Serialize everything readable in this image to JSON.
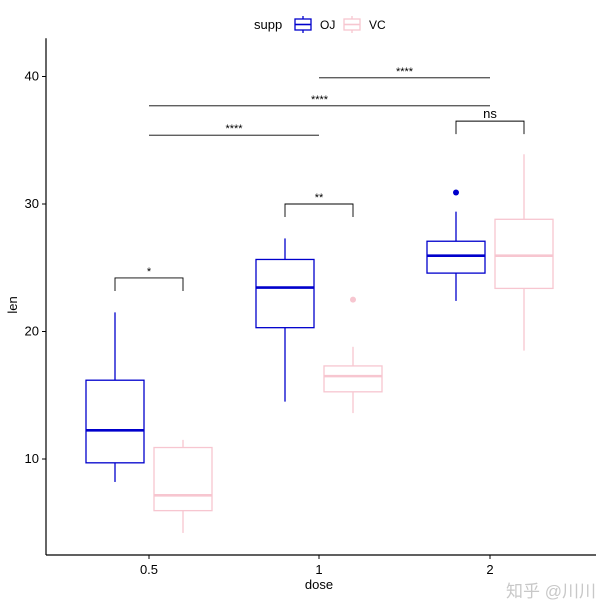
{
  "chart_data": {
    "type": "boxplot",
    "xlabel": "dose",
    "ylabel": "len",
    "categories": [
      "0.5",
      "1",
      "2"
    ],
    "yticks": [
      10,
      20,
      30,
      40
    ],
    "ylim": [
      2.6,
      43
    ],
    "grid": false,
    "legend": {
      "title": "supp",
      "position": "top",
      "entries": [
        "OJ",
        "VC"
      ]
    },
    "series": [
      {
        "name": "OJ",
        "color": "#0000CC",
        "boxes": [
          {
            "min": 8.2,
            "q1": 9.7,
            "median": 12.25,
            "q3": 16.18,
            "max": 21.5,
            "outliers": []
          },
          {
            "min": 14.5,
            "q1": 20.3,
            "median": 23.45,
            "q3": 25.65,
            "max": 27.3,
            "outliers": []
          },
          {
            "min": 22.4,
            "q1": 24.58,
            "median": 25.95,
            "q3": 27.08,
            "max": 29.4,
            "outliers": [
              30.9
            ]
          }
        ]
      },
      {
        "name": "VC",
        "color": "#F7C6D0",
        "boxes": [
          {
            "min": 4.2,
            "q1": 5.95,
            "median": 7.15,
            "q3": 10.9,
            "max": 11.5,
            "outliers": []
          },
          {
            "min": 13.6,
            "q1": 15.27,
            "median": 16.5,
            "q3": 17.3,
            "max": 18.8,
            "outliers": [
              22.5
            ]
          },
          {
            "min": 18.5,
            "q1": 23.38,
            "median": 25.95,
            "q3": 28.8,
            "max": 33.9,
            "outliers": []
          }
        ]
      }
    ],
    "annotations": [
      {
        "label": "*",
        "from": [
          "0.5",
          "OJ"
        ],
        "to": [
          "0.5",
          "VC"
        ],
        "y": 24.2
      },
      {
        "label": "**",
        "from": [
          "1",
          "OJ"
        ],
        "to": [
          "1",
          "VC"
        ],
        "y": 30.0
      },
      {
        "label": "ns",
        "from": [
          "2",
          "OJ"
        ],
        "to": [
          "2",
          "VC"
        ],
        "y": 36.5
      },
      {
        "label": "****",
        "from": [
          "0.5",
          null
        ],
        "to": [
          "1",
          null
        ],
        "y": 35.4
      },
      {
        "label": "****",
        "from": [
          "0.5",
          null
        ],
        "to": [
          "2",
          null
        ],
        "y": 37.7
      },
      {
        "label": "****",
        "from": [
          "1",
          null
        ],
        "to": [
          "2",
          null
        ],
        "y": 39.9
      }
    ]
  },
  "watermark": "知乎 @川川"
}
